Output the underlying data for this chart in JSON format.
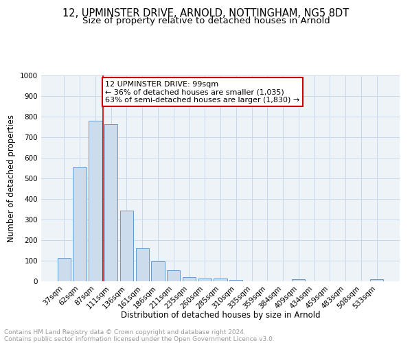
{
  "title": "12, UPMINSTER DRIVE, ARNOLD, NOTTINGHAM, NG5 8DT",
  "subtitle": "Size of property relative to detached houses in Arnold",
  "xlabel": "Distribution of detached houses by size in Arnold",
  "ylabel": "Number of detached properties",
  "categories": [
    "37sqm",
    "62sqm",
    "87sqm",
    "111sqm",
    "136sqm",
    "161sqm",
    "186sqm",
    "211sqm",
    "235sqm",
    "260sqm",
    "285sqm",
    "310sqm",
    "335sqm",
    "359sqm",
    "384sqm",
    "409sqm",
    "434sqm",
    "459sqm",
    "483sqm",
    "508sqm",
    "533sqm"
  ],
  "values": [
    115,
    555,
    780,
    763,
    345,
    160,
    97,
    55,
    20,
    13,
    13,
    8,
    0,
    0,
    0,
    10,
    0,
    0,
    0,
    0,
    10
  ],
  "bar_color": "#ccdcec",
  "bar_edge_color": "#6699cc",
  "annotation_text_line1": "12 UPMINSTER DRIVE: 99sqm",
  "annotation_text_line2": "← 36% of detached houses are smaller (1,035)",
  "annotation_text_line3": "63% of semi-detached houses are larger (1,830) →",
  "annotation_box_facecolor": "#ffffff",
  "annotation_box_edgecolor": "#cc0000",
  "redline_x": 2.5,
  "ylim": [
    0,
    1000
  ],
  "yticks": [
    0,
    100,
    200,
    300,
    400,
    500,
    600,
    700,
    800,
    900,
    1000
  ],
  "grid_color": "#c8d8ea",
  "background_color": "#eef3f8",
  "footer_line1": "Contains HM Land Registry data © Crown copyright and database right 2024.",
  "footer_line2": "Contains public sector information licensed under the Open Government Licence v3.0.",
  "title_fontsize": 10.5,
  "subtitle_fontsize": 9.5,
  "axis_label_fontsize": 8.5,
  "tick_fontsize": 7.5,
  "annotation_fontsize": 8,
  "footer_fontsize": 6.5
}
